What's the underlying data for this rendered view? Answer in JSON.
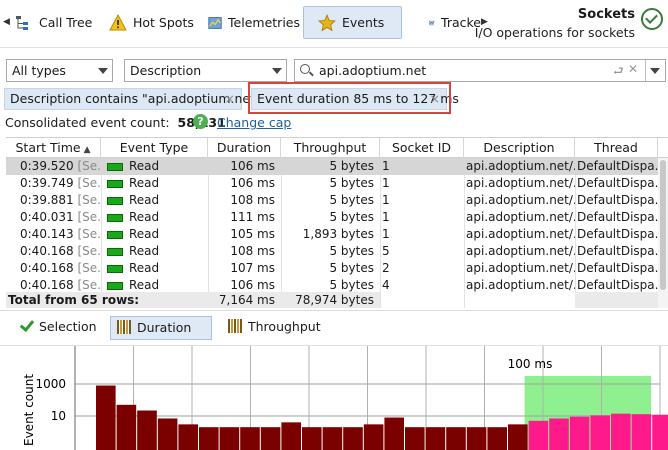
{
  "tabs": [
    {
      "label": "Call Tree",
      "icon": "call-tree-icon",
      "active": false
    },
    {
      "label": "Hot Spots",
      "icon": "hot-spots-warning-icon",
      "active": false
    },
    {
      "label": "Telemetries",
      "icon": "telemetries-icon",
      "active": false
    },
    {
      "label": "Events",
      "icon": "events-star-icon",
      "active": true
    },
    {
      "label": "Tracke",
      "icon": "tracker-icon",
      "active": false
    }
  ],
  "header": {
    "title": "Sockets",
    "subtitle": "I/O operations for sockets"
  },
  "filters": {
    "type_select": "All types",
    "field_select": "Description",
    "search_value": "api.adoptium.net"
  },
  "chips": [
    {
      "label": "Description contains \"api.adoptium.net\"",
      "close": "×"
    },
    {
      "label": "Event duration 85 ms to 127 ms",
      "close": "×"
    }
  ],
  "summary": {
    "label": "Consolidated event count:",
    "count": "58,131",
    "help": "?",
    "link": "Change cap"
  },
  "table": {
    "headers": [
      "Start Time",
      "Event Type",
      "Duration",
      "Throughput",
      "Socket ID",
      "Description",
      "Thread"
    ],
    "rows": [
      {
        "time": "0:39.520",
        "tag": "[Se...",
        "type": "Read",
        "duration": "106 ms",
        "throughput": "5 bytes",
        "socket": "1",
        "desc": "api.adoptium.net/...",
        "thread": "DefaultDispa..."
      },
      {
        "time": "0:39.749",
        "tag": "[Se...",
        "type": "Read",
        "duration": "106 ms",
        "throughput": "5 bytes",
        "socket": "1",
        "desc": "api.adoptium.net/...",
        "thread": "DefaultDispa..."
      },
      {
        "time": "0:39.881",
        "tag": "[Se...",
        "type": "Read",
        "duration": "108 ms",
        "throughput": "5 bytes",
        "socket": "1",
        "desc": "api.adoptium.net/...",
        "thread": "DefaultDispa..."
      },
      {
        "time": "0:40.031",
        "tag": "[Se...",
        "type": "Read",
        "duration": "111 ms",
        "throughput": "5 bytes",
        "socket": "1",
        "desc": "api.adoptium.net/...",
        "thread": "DefaultDispa..."
      },
      {
        "time": "0:40.143",
        "tag": "[Se...",
        "type": "Read",
        "duration": "105 ms",
        "throughput": "1,893 bytes",
        "socket": "1",
        "desc": "api.adoptium.net/...",
        "thread": "DefaultDispa..."
      },
      {
        "time": "0:40.168",
        "tag": "[Se...",
        "type": "Read",
        "duration": "108 ms",
        "throughput": "5 bytes",
        "socket": "5",
        "desc": "api.adoptium.net/...",
        "thread": "DefaultDispa..."
      },
      {
        "time": "0:40.168",
        "tag": "[Se...",
        "type": "Read",
        "duration": "107 ms",
        "throughput": "5 bytes",
        "socket": "2",
        "desc": "api.adoptium.net/...",
        "thread": "DefaultDispa..."
      },
      {
        "time": "0:40.168",
        "tag": "[Se...",
        "type": "Read",
        "duration": "106 ms",
        "throughput": "5 bytes",
        "socket": "4",
        "desc": "api.adoptium.net/...",
        "thread": "DefaultDispa..."
      }
    ],
    "total": {
      "label": "Total from 65 rows:",
      "duration": "7,164 ms",
      "throughput": "78,974 bytes"
    }
  },
  "chart_toggles": [
    {
      "label": "Selection",
      "icon": "checkmark-icon",
      "active": false
    },
    {
      "label": "Duration",
      "icon": "histogram-icon",
      "active": true
    },
    {
      "label": "Throughput",
      "icon": "histogram-icon",
      "active": false
    }
  ],
  "chart_data": {
    "type": "bar",
    "title": "",
    "xlabel": "",
    "ylabel": "Event count",
    "yscale": "log",
    "yticks": [
      "1000",
      "10"
    ],
    "highlight_label": "100 ms",
    "colors": {
      "bars": "#7b0000",
      "highlight_bars": "#ff1a8c",
      "highlight_bg": "#8ef08e"
    },
    "values": [
      800,
      50,
      22,
      7,
      3,
      2,
      2,
      2,
      2,
      4,
      2,
      2,
      2,
      3,
      8,
      2,
      2,
      2,
      2,
      2,
      3,
      5,
      7,
      9,
      11,
      14,
      13,
      12,
      9
    ],
    "highlighted_from_index": 21
  }
}
